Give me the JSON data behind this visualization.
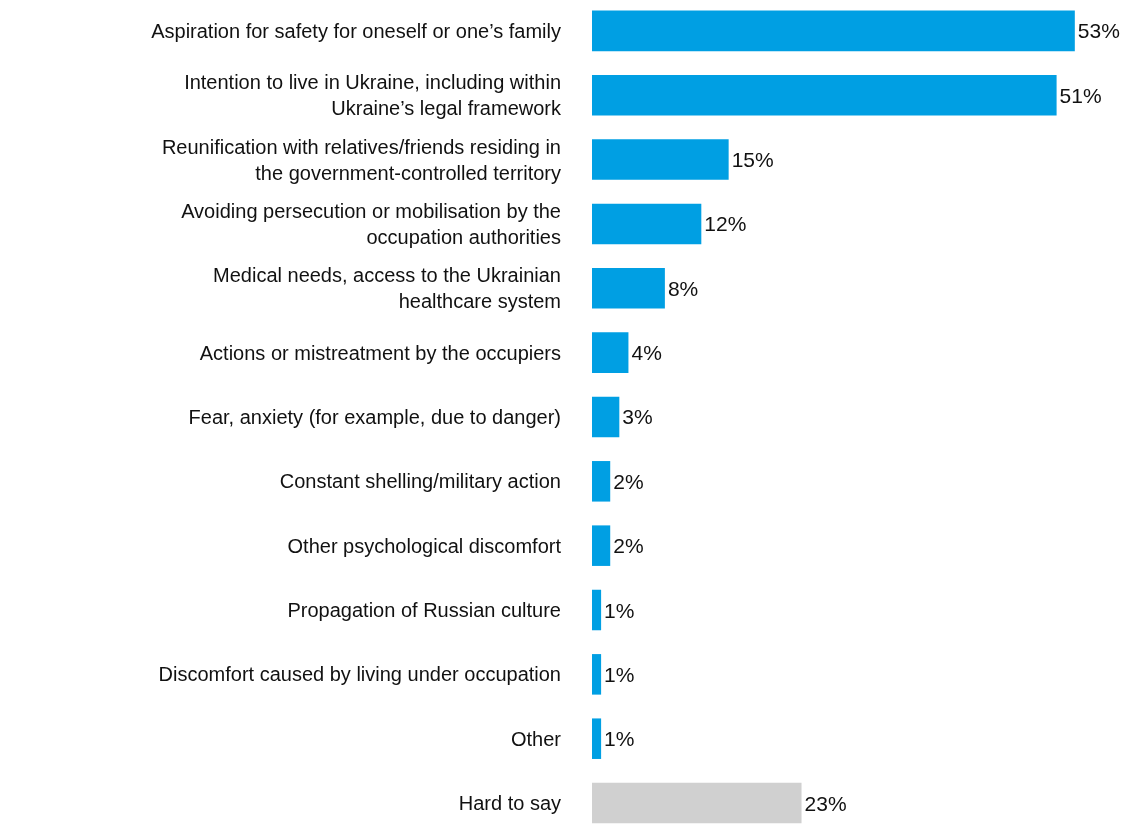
{
  "chart_data": {
    "type": "bar",
    "orientation": "horizontal",
    "categories": [
      "Aspiration for safety for oneself or one’s family",
      "Intention to live in Ukraine, including within\nUkraine’s legal framework",
      "Reunification with relatives/friends residing in\nthe government-controlled territory",
      "Avoiding persecution or mobilisation by the\noccupation authorities",
      "Medical needs, access to the Ukrainian\nhealthcare system",
      "Actions or mistreatment by the occupiers",
      "Fear, anxiety (for example, due to danger)",
      "Constant shelling/military action",
      "Other psychological discomfort",
      "Propagation of Russian culture",
      "Discomfort caused by living under occupation",
      "Other",
      "Hard to say"
    ],
    "values": [
      53,
      51,
      15,
      12,
      8,
      4,
      3,
      2,
      2,
      1,
      1,
      1,
      23
    ],
    "value_labels": [
      "53%",
      "51%",
      "15%",
      "12%",
      "8%",
      "4%",
      "3%",
      "2%",
      "2%",
      "1%",
      "1%",
      "1%",
      "23%"
    ],
    "colors": [
      "#009fe3",
      "#009fe3",
      "#009fe3",
      "#009fe3",
      "#009fe3",
      "#009fe3",
      "#009fe3",
      "#009fe3",
      "#009fe3",
      "#009fe3",
      "#009fe3",
      "#009fe3",
      "#d0d0d0"
    ]
  }
}
